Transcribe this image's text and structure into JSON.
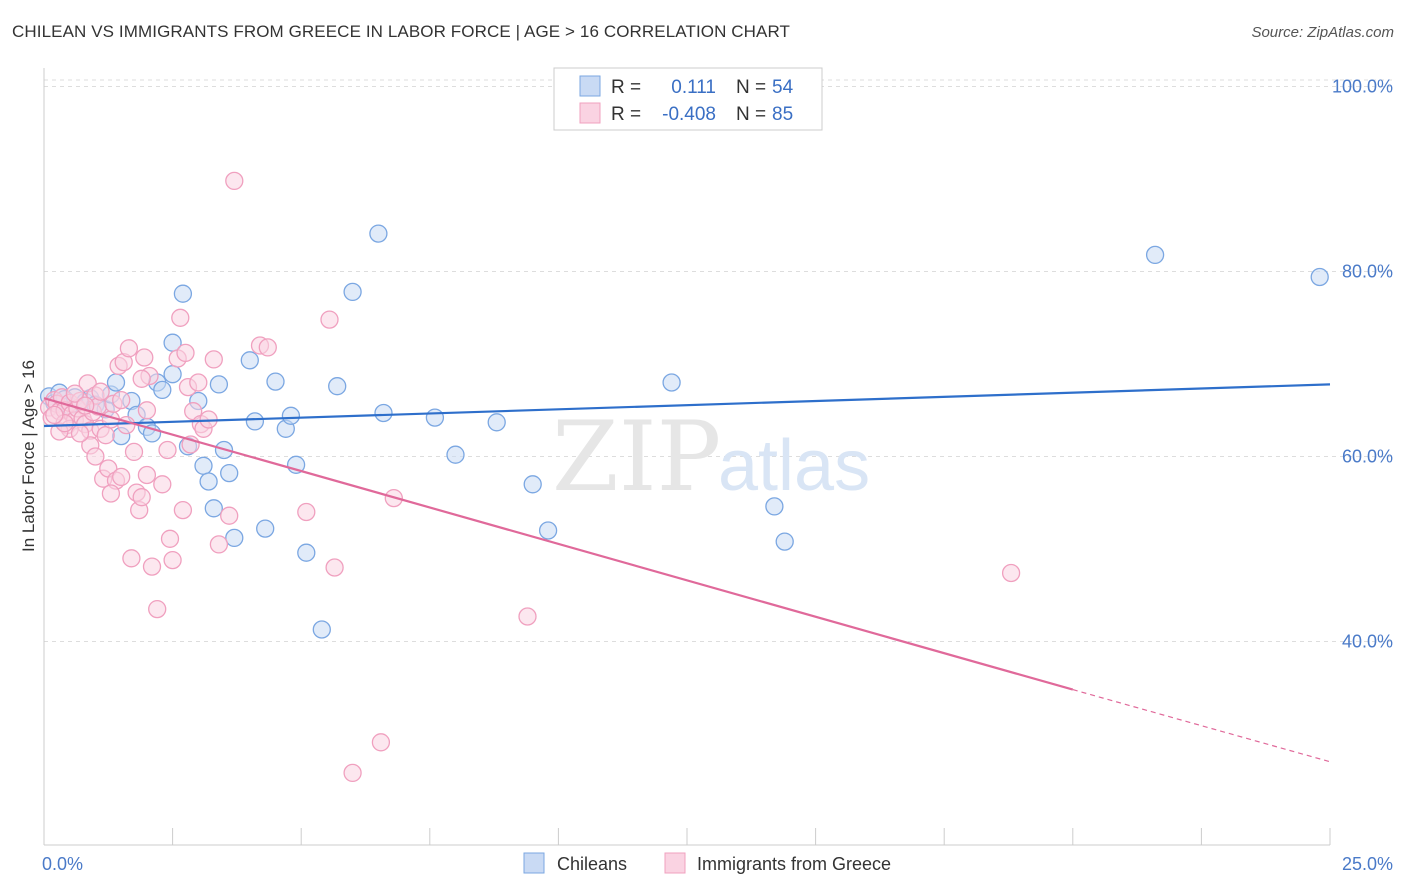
{
  "chart_data": {
    "type": "scatter",
    "title": "CHILEAN VS IMMIGRANTS FROM GREECE IN LABOR FORCE | AGE > 16 CORRELATION CHART",
    "source": "Source: ZipAtlas.com",
    "xlabel": "",
    "ylabel": "In Labor Force | Age > 16",
    "xlim": [
      0,
      25
    ],
    "ylim": [
      18,
      102
    ],
    "x_tick_labels": [
      {
        "value": 0,
        "label": "0.0%"
      },
      {
        "value": 25,
        "label": "25.0%"
      }
    ],
    "y_tick_labels": [
      {
        "value": 40,
        "label": "40.0%"
      },
      {
        "value": 60,
        "label": "60.0%"
      },
      {
        "value": 80,
        "label": "80.0%"
      },
      {
        "value": 100,
        "label": "100.0%"
      }
    ],
    "x_minor_ticks": [
      2.5,
      5,
      7.5,
      10,
      12.5,
      15,
      17.5,
      20,
      22.5,
      25
    ],
    "grid": true,
    "legend": {
      "placement": "top-center",
      "rows": [
        {
          "r_label": "R =",
          "r_value": "0.111",
          "n_label": "N =",
          "n_value": "54"
        },
        {
          "r_label": "R =",
          "r_value": "-0.408",
          "n_label": "N =",
          "n_value": "85"
        }
      ]
    },
    "bottom_legend": [
      "Chileans",
      "Immigrants from Greece"
    ],
    "watermark": {
      "zip": "ZIP",
      "atlas": "atlas"
    },
    "series": [
      {
        "name": "Chileans",
        "color": "#7ba7e2",
        "fill": "#c9daf4",
        "trend": {
          "x0": 0,
          "y0": 63.3,
          "x1": 25,
          "y1": 67.8,
          "color": "#2e6fcb"
        },
        "points": [
          [
            0.1,
            66.5
          ],
          [
            0.2,
            65.8
          ],
          [
            0.3,
            66.9
          ],
          [
            0.4,
            66.2
          ],
          [
            0.5,
            65.5
          ],
          [
            0.6,
            66.4
          ],
          [
            0.8,
            65.9
          ],
          [
            0.9,
            66.3
          ],
          [
            1.0,
            65.6
          ],
          [
            1.2,
            65.1
          ],
          [
            1.3,
            66.7
          ],
          [
            1.4,
            68.0
          ],
          [
            1.5,
            62.2
          ],
          [
            1.7,
            66.0
          ],
          [
            1.8,
            64.5
          ],
          [
            2.0,
            63.2
          ],
          [
            2.1,
            62.5
          ],
          [
            2.2,
            68.0
          ],
          [
            2.3,
            67.2
          ],
          [
            2.5,
            68.9
          ],
          [
            2.5,
            72.3
          ],
          [
            2.7,
            77.6
          ],
          [
            2.8,
            61.1
          ],
          [
            3.0,
            66.0
          ],
          [
            3.1,
            59.0
          ],
          [
            3.2,
            57.3
          ],
          [
            3.3,
            54.4
          ],
          [
            3.4,
            67.8
          ],
          [
            3.5,
            60.7
          ],
          [
            3.6,
            58.2
          ],
          [
            3.7,
            51.2
          ],
          [
            4.0,
            70.4
          ],
          [
            4.1,
            63.8
          ],
          [
            4.3,
            52.2
          ],
          [
            4.5,
            68.1
          ],
          [
            4.7,
            63.0
          ],
          [
            4.8,
            64.4
          ],
          [
            4.9,
            59.1
          ],
          [
            5.1,
            49.6
          ],
          [
            5.4,
            41.3
          ],
          [
            5.7,
            67.6
          ],
          [
            6.0,
            77.8
          ],
          [
            6.5,
            84.1
          ],
          [
            6.6,
            64.7
          ],
          [
            7.6,
            64.2
          ],
          [
            8.0,
            60.2
          ],
          [
            8.8,
            63.7
          ],
          [
            9.5,
            57.0
          ],
          [
            9.8,
            52.0
          ],
          [
            12.2,
            68.0
          ],
          [
            14.2,
            54.6
          ],
          [
            14.4,
            50.8
          ],
          [
            21.6,
            81.8
          ],
          [
            24.8,
            79.4
          ]
        ]
      },
      {
        "name": "Immigrants from Greece",
        "color": "#f0a0bf",
        "fill": "#fad3e2",
        "trend": {
          "x0": 0,
          "y0": 66.3,
          "x1": 20.0,
          "y1": 34.8,
          "color": "#e0699a"
        },
        "trend_dashed": {
          "x0": 20.0,
          "y0": 34.8,
          "x1": 25,
          "y1": 27.0
        },
        "points": [
          [
            0.1,
            65.3
          ],
          [
            0.15,
            64.2
          ],
          [
            0.2,
            66.1
          ],
          [
            0.25,
            65.7
          ],
          [
            0.3,
            64.9
          ],
          [
            0.35,
            66.4
          ],
          [
            0.4,
            65.0
          ],
          [
            0.45,
            63.4
          ],
          [
            0.5,
            65.8
          ],
          [
            0.55,
            64.6
          ],
          [
            0.6,
            63.9
          ],
          [
            0.65,
            65.2
          ],
          [
            0.7,
            66.0
          ],
          [
            0.75,
            64.1
          ],
          [
            0.8,
            63.5
          ],
          [
            0.85,
            67.9
          ],
          [
            0.9,
            62.8
          ],
          [
            0.95,
            64.8
          ],
          [
            1.0,
            66.6
          ],
          [
            1.05,
            65.4
          ],
          [
            1.1,
            63.0
          ],
          [
            1.15,
            57.6
          ],
          [
            1.2,
            62.3
          ],
          [
            1.25,
            58.7
          ],
          [
            1.3,
            64.0
          ],
          [
            1.35,
            65.7
          ],
          [
            1.4,
            57.4
          ],
          [
            1.45,
            69.8
          ],
          [
            1.5,
            57.8
          ],
          [
            1.55,
            70.2
          ],
          [
            1.6,
            63.4
          ],
          [
            1.65,
            71.7
          ],
          [
            1.7,
            49.0
          ],
          [
            1.75,
            60.5
          ],
          [
            1.8,
            56.1
          ],
          [
            1.85,
            54.2
          ],
          [
            1.9,
            55.6
          ],
          [
            1.95,
            70.7
          ],
          [
            2.0,
            65.0
          ],
          [
            2.05,
            68.7
          ],
          [
            2.1,
            48.1
          ],
          [
            2.2,
            43.5
          ],
          [
            2.3,
            57.0
          ],
          [
            2.4,
            60.7
          ],
          [
            2.45,
            51.1
          ],
          [
            2.5,
            48.8
          ],
          [
            2.6,
            70.6
          ],
          [
            2.65,
            75.0
          ],
          [
            2.7,
            54.2
          ],
          [
            2.75,
            71.2
          ],
          [
            2.8,
            67.5
          ],
          [
            2.85,
            61.3
          ],
          [
            2.9,
            64.9
          ],
          [
            3.0,
            68.0
          ],
          [
            3.05,
            63.5
          ],
          [
            3.1,
            63.0
          ],
          [
            3.2,
            64.0
          ],
          [
            3.3,
            70.5
          ],
          [
            3.4,
            50.5
          ],
          [
            3.6,
            53.6
          ],
          [
            3.7,
            89.8
          ],
          [
            4.2,
            72.0
          ],
          [
            4.35,
            71.8
          ],
          [
            5.1,
            54.0
          ],
          [
            5.55,
            74.8
          ],
          [
            5.65,
            48.0
          ],
          [
            6.8,
            55.5
          ],
          [
            6.55,
            29.1
          ],
          [
            6.0,
            25.8
          ],
          [
            9.4,
            42.7
          ],
          [
            18.8,
            47.4
          ],
          [
            0.5,
            63.0
          ],
          [
            0.9,
            61.2
          ],
          [
            1.1,
            67.0
          ],
          [
            0.3,
            62.7
          ],
          [
            0.6,
            66.8
          ],
          [
            0.7,
            62.5
          ],
          [
            1.3,
            56.0
          ],
          [
            1.5,
            66.1
          ],
          [
            2.0,
            58.0
          ],
          [
            1.9,
            68.4
          ],
          [
            0.4,
            63.6
          ],
          [
            0.2,
            64.5
          ],
          [
            1.0,
            60.0
          ],
          [
            0.8,
            65.5
          ]
        ]
      }
    ]
  }
}
